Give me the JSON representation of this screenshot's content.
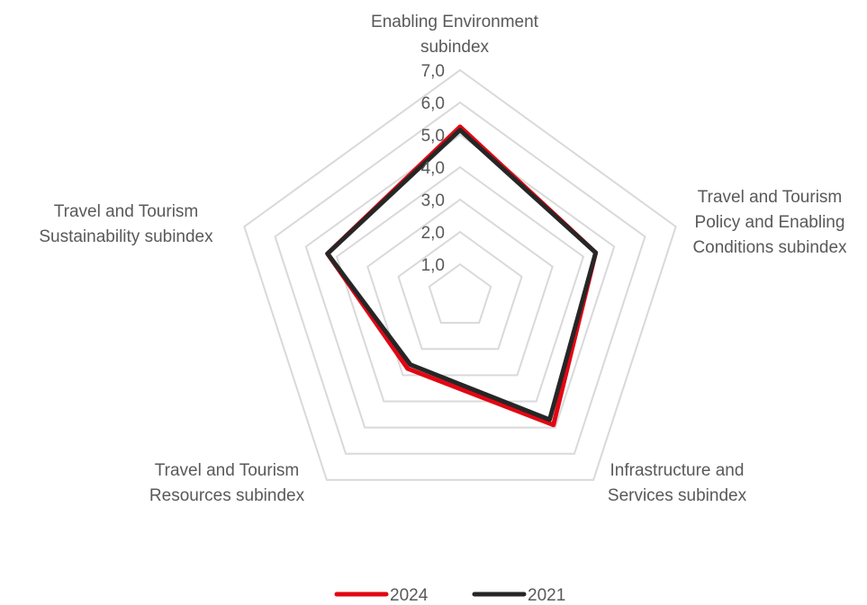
{
  "chart_data": {
    "type": "radar",
    "axes": [
      {
        "label_lines": [
          "Enabling Environment",
          "subindex"
        ]
      },
      {
        "label_lines": [
          "Travel and Tourism",
          "Policy and Enabling",
          "Conditions subindex"
        ]
      },
      {
        "label_lines": [
          "Infrastructure and",
          "Services subindex"
        ]
      },
      {
        "label_lines": [
          "Travel and Tourism",
          "Resources subindex"
        ]
      },
      {
        "label_lines": [
          "Travel and Tourism",
          "Sustainability subindex"
        ]
      }
    ],
    "rlim": [
      0,
      7
    ],
    "ticks": [
      "1,0",
      "2,0",
      "3,0",
      "4,0",
      "5,0",
      "6,0",
      "7,0"
    ],
    "tick_values": [
      1,
      2,
      3,
      4,
      5,
      6,
      7
    ],
    "series": [
      {
        "name": "2024",
        "color": "#e30613",
        "values": [
          5.25,
          4.4,
          4.9,
          2.75,
          4.3
        ]
      },
      {
        "name": "2021",
        "color": "#262626",
        "values": [
          5.15,
          4.4,
          4.7,
          2.6,
          4.3
        ]
      }
    ],
    "legend": "bottom",
    "grid": true
  }
}
